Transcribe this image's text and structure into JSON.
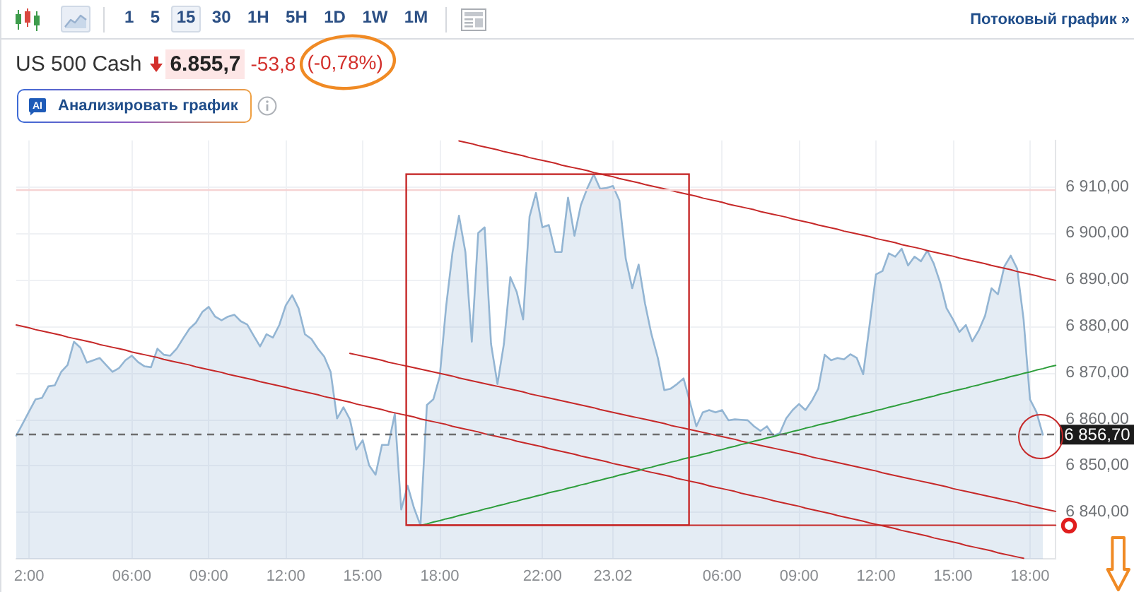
{
  "chart_data": {
    "type": "area",
    "title": "US 500 Cash",
    "annotations": [
      "6.855,7",
      "-53,8",
      "(-0,78%)",
      "AI",
      "Анализировать график",
      "Потоковый график »",
      "1 5 15 30 1H 5H 1D 1W 1M"
    ],
    "categories": [
      null,
      null,
      "2:00",
      null,
      null,
      null,
      null,
      null,
      null,
      null,
      null,
      null,
      null,
      null,
      null,
      null,
      null,
      null,
      "06:00",
      null,
      null,
      null,
      null,
      null,
      null,
      null,
      null,
      null,
      null,
      null,
      "09:00",
      null,
      null,
      null,
      null,
      null,
      null,
      null,
      null,
      null,
      null,
      null,
      "12:00",
      null,
      null,
      null,
      null,
      null,
      null,
      null,
      null,
      null,
      null,
      null,
      "15:00",
      null,
      null,
      null,
      null,
      null,
      null,
      null,
      null,
      null,
      null,
      null,
      "18:00",
      null,
      null,
      null,
      null,
      null,
      null,
      null,
      null,
      null,
      null,
      null,
      null,
      null,
      null,
      null,
      "22:00",
      null,
      null,
      null,
      null,
      null,
      null,
      null,
      null,
      null,
      null,
      "23.02",
      null,
      null,
      null,
      null,
      null,
      null,
      null,
      null,
      null,
      null,
      null,
      null,
      null,
      null,
      null,
      null,
      "06:00",
      null,
      null,
      null,
      null,
      null,
      null,
      null,
      null,
      null,
      null,
      null,
      "09:00",
      null,
      null,
      null,
      null,
      null,
      null,
      null,
      null,
      null,
      null,
      null,
      "12:00",
      null,
      null,
      null,
      null,
      null,
      null,
      null,
      null,
      null,
      null,
      null,
      "15:00",
      null,
      null,
      null,
      null,
      null,
      null,
      null,
      null,
      null,
      null,
      null,
      "18:00",
      null,
      null,
      null,
      null
    ],
    "series": [
      {
        "color": "#93b5d3",
        "values": [
          6856.5,
          6859.1,
          6861.7,
          6864.3,
          6864.6,
          6867.1,
          6867.3,
          6870.2,
          6871.7,
          6876.7,
          6875.4,
          6872.2,
          6872.7,
          6873.2,
          6871.7,
          6870.2,
          6871,
          6872.7,
          6873.7,
          6872.3,
          6871.4,
          6871.2,
          6875.2,
          6873.9,
          6873.7,
          6875.2,
          6877.4,
          6879.5,
          6880.8,
          6883.1,
          6884.2,
          6882.1,
          6881.3,
          6882.1,
          6882.5,
          6881.1,
          6880.4,
          6878,
          6875.7,
          6878.3,
          6877.6,
          6880.3,
          6884.5,
          6886.7,
          6883.9,
          6878.3,
          6877.3,
          6875.2,
          6873.5,
          6870.2,
          6860.2,
          6862.6,
          6860,
          6853.5,
          6855.5,
          6850.1,
          6848.1,
          6854.5,
          6854.5,
          6861.2,
          6840.6,
          6845.7,
          6840.9,
          6837.2,
          6863.1,
          6864.3,
          6869.2,
          6884.3,
          6896,
          6903.8,
          6896,
          6876.7,
          6900.1,
          6901.3,
          6876.2,
          6867.6,
          6876.2,
          6890.6,
          6887.4,
          6881.5,
          6903.6,
          6908.7,
          6901.3,
          6901.8,
          6896,
          6896,
          6907.7,
          6899.5,
          6906.1,
          6909.7,
          6912.7,
          6909.6,
          6909.8,
          6910.2,
          6907.1,
          6894.5,
          6888.2,
          6893.3,
          6884.9,
          6878.3,
          6873.2,
          6866.3,
          6866.6,
          6867.6,
          6868.8,
          6863.7,
          6858.5,
          6861.5,
          6862,
          6861.5,
          6862,
          6859.8,
          6860,
          6859.9,
          6859.8,
          6858.5,
          6857.5,
          6858.5,
          6856.5,
          6857,
          6860.2,
          6862,
          6863.3,
          6862,
          6864,
          6866.6,
          6873.9,
          6872.7,
          6873.2,
          6872.9,
          6874,
          6873.2,
          6869.7,
          6880.3,
          6891.2,
          6891.9,
          6895.7,
          6895,
          6896.7,
          6893.1,
          6895,
          6894,
          6896.3,
          6893.5,
          6889.4,
          6883.9,
          6881.5,
          6878.8,
          6880.3,
          6876.8,
          6879.1,
          6882.3,
          6888.2,
          6886.9,
          6892.9,
          6895.2,
          6892.4,
          6881.5,
          6864.3,
          6861.6,
          6856.7,
          null,
          null
        ]
      },
      {
        "type": "line",
        "color": "#c62828",
        "values": [
          null,
          null,
          null,
          null,
          null,
          null,
          null,
          null,
          null,
          null,
          null,
          null,
          null,
          null,
          null,
          null,
          null,
          null,
          null,
          null,
          null,
          null,
          null,
          null,
          null,
          null,
          null,
          null,
          null,
          null,
          null,
          null,
          null,
          null,
          null,
          null,
          null,
          null,
          null,
          null,
          null,
          null,
          null,
          null,
          null,
          null,
          null,
          null,
          null,
          null,
          null,
          null,
          null,
          null,
          null,
          null,
          null,
          null,
          null,
          null,
          null,
          null,
          null,
          null,
          null,
          null,
          null,
          null,
          null,
          6919.9,
          6919.6,
          6919.3,
          6918.9,
          6918.6,
          6918.3,
          6918.0,
          6917.6,
          6917.3,
          6917.0,
          6916.7,
          6916.3,
          6916.0,
          6915.7,
          6915.4,
          6915.1,
          6914.7,
          6914.4,
          6914.1,
          6913.8,
          6913.5,
          6913.1,
          6912.8,
          6912.5,
          6912.2,
          6911.8,
          6911.5,
          6911.2,
          6910.9,
          6910.5,
          6910.2,
          6909.9,
          6909.6,
          6909.3,
          6908.9,
          6908.6,
          6908.3,
          6908.0,
          6907.6,
          6907.3,
          6907.0,
          6906.7,
          6906.3,
          6906.0,
          6905.7,
          6905.4,
          6905.1,
          6904.7,
          6904.4,
          6904.1,
          6903.8,
          6903.5,
          6903.1,
          6902.8,
          6902.5,
          6902.2,
          6901.8,
          6901.5,
          6901.2,
          6900.9,
          6900.5,
          6900.2,
          6899.9,
          6899.6,
          6899.3,
          6898.9,
          6898.6,
          6898.3,
          6898.0,
          6897.6,
          6897.3,
          6897.0,
          6896.7,
          6896.3,
          6896.0,
          6895.7,
          6895.4,
          6895.1,
          6894.7,
          6894.4,
          6894.1,
          6893.8,
          6893.5,
          6893.1,
          6892.8,
          6892.5,
          6892.2,
          6891.8,
          6891.5,
          6891.2,
          6890.9,
          6890.5,
          6890.2,
          6889.9
        ]
      },
      {
        "type": "line",
        "color": "#c62828",
        "values": [
          null,
          null,
          null,
          null,
          null,
          null,
          null,
          null,
          null,
          null,
          null,
          null,
          null,
          null,
          null,
          null,
          null,
          null,
          null,
          null,
          null,
          null,
          null,
          null,
          null,
          null,
          null,
          null,
          null,
          null,
          null,
          null,
          null,
          null,
          null,
          null,
          null,
          null,
          null,
          null,
          null,
          null,
          null,
          null,
          null,
          null,
          null,
          null,
          null,
          null,
          null,
          null,
          6874.2,
          6873.9,
          6873.6,
          6873.3,
          6873.0,
          6872.7,
          6872.3,
          6872.0,
          6871.7,
          6871.4,
          6871.1,
          6870.8,
          6870.5,
          6870.2,
          6869.9,
          6869.6,
          6869.3,
          6868.9,
          6868.6,
          6868.3,
          6868.0,
          6867.7,
          6867.4,
          6867.1,
          6866.8,
          6866.5,
          6866.2,
          6865.9,
          6865.5,
          6865.2,
          6864.9,
          6864.6,
          6864.3,
          6864.0,
          6863.7,
          6863.4,
          6863.1,
          6862.8,
          6862.5,
          6862.1,
          6861.8,
          6861.5,
          6861.2,
          6860.9,
          6860.6,
          6860.3,
          6860.0,
          6859.7,
          6859.4,
          6859.1,
          6858.7,
          6858.4,
          6858.1,
          6857.8,
          6857.5,
          6857.2,
          6856.9,
          6856.6,
          6856.3,
          6856.0,
          6855.7,
          6855.3,
          6855.0,
          6854.7,
          6854.4,
          6854.1,
          6853.8,
          6853.5,
          6853.2,
          6852.9,
          6852.6,
          6852.3,
          6851.9,
          6851.6,
          6851.3,
          6851.0,
          6850.7,
          6850.4,
          6850.1,
          6849.8,
          6849.5,
          6849.2,
          6848.9,
          6848.5,
          6848.2,
          6847.9,
          6847.6,
          6847.3,
          6847.0,
          6846.7,
          6846.4,
          6846.1,
          6845.8,
          6845.5,
          6845.1,
          6844.8,
          6844.5,
          6844.2,
          6843.9,
          6843.6,
          6843.3,
          6843.0,
          6842.7,
          6842.4,
          6842.1,
          6841.7,
          6841.4,
          6841.1,
          6840.8,
          6840.5,
          6840.2
        ]
      },
      {
        "type": "line",
        "color": "#c62828",
        "values": [
          6880.3,
          6880.0,
          6879.7,
          6879.3,
          6879.0,
          6878.7,
          6878.4,
          6878.1,
          6877.7,
          6877.4,
          6877.1,
          6876.8,
          6876.5,
          6876.1,
          6875.8,
          6875.5,
          6875.2,
          6874.9,
          6874.5,
          6874.2,
          6873.9,
          6873.6,
          6873.3,
          6872.9,
          6872.6,
          6872.3,
          6872.0,
          6871.7,
          6871.3,
          6871.0,
          6870.7,
          6870.4,
          6870.1,
          6869.7,
          6869.4,
          6869.1,
          6868.8,
          6868.5,
          6868.1,
          6867.8,
          6867.5,
          6867.2,
          6866.9,
          6866.5,
          6866.2,
          6865.9,
          6865.6,
          6865.3,
          6864.9,
          6864.6,
          6864.3,
          6864.0,
          6863.7,
          6863.3,
          6863.0,
          6862.7,
          6862.4,
          6862.1,
          6861.7,
          6861.4,
          6861.1,
          6860.8,
          6860.5,
          6860.1,
          6859.8,
          6859.5,
          6859.2,
          6858.9,
          6858.5,
          6858.2,
          6857.9,
          6857.6,
          6857.3,
          6856.9,
          6856.6,
          6856.3,
          6856.0,
          6855.7,
          6855.3,
          6855.0,
          6854.7,
          6854.4,
          6854.1,
          6853.7,
          6853.4,
          6853.1,
          6852.8,
          6852.5,
          6852.1,
          6851.8,
          6851.5,
          6851.2,
          6850.9,
          6850.5,
          6850.2,
          6849.9,
          6849.6,
          6849.3,
          6848.9,
          6848.6,
          6848.3,
          6848.0,
          6847.7,
          6847.3,
          6847.0,
          6846.7,
          6846.4,
          6846.1,
          6845.7,
          6845.4,
          6845.1,
          6844.8,
          6844.5,
          6844.1,
          6843.8,
          6843.5,
          6843.2,
          6842.9,
          6842.5,
          6842.2,
          6841.9,
          6841.6,
          6841.3,
          6840.9,
          6840.6,
          6840.3,
          6840.0,
          6839.7,
          6839.3,
          6839.0,
          6838.7,
          6838.4,
          6838.1,
          6837.7,
          6837.4,
          6837.1,
          6836.8,
          6836.5,
          6836.1,
          6835.8,
          6835.5,
          6835.2,
          6834.9,
          6834.5,
          6834.2,
          6833.9,
          6833.6,
          6833.3,
          6832.9,
          6832.6,
          6832.3,
          6832.0,
          6831.7,
          6831.3,
          6831.0,
          6830.7,
          6830.4,
          6830.1,
          null,
          null,
          null,
          null,
          null
        ]
      },
      {
        "type": "line",
        "color": "#c62828",
        "values": [
          null,
          null,
          null,
          null,
          null,
          null,
          null,
          null,
          null,
          null,
          null,
          null,
          null,
          null,
          null,
          null,
          null,
          null,
          null,
          null,
          null,
          null,
          null,
          null,
          null,
          null,
          null,
          null,
          null,
          null,
          null,
          null,
          null,
          null,
          null,
          null,
          null,
          null,
          null,
          null,
          null,
          null,
          null,
          null,
          null,
          null,
          null,
          null,
          null,
          null,
          null,
          null,
          null,
          null,
          null,
          null,
          null,
          null,
          null,
          null,
          null,
          6837.2,
          6837.2,
          6837.2,
          6837.2,
          6837.2,
          6837.2,
          6837.2,
          6837.2,
          6837.2,
          6837.2,
          6837.2,
          6837.2,
          6837.2,
          6837.2,
          6837.2,
          6837.2,
          6837.2,
          6837.2,
          6837.2,
          6837.2,
          6837.2,
          6837.2,
          6837.2,
          6837.2,
          6837.2,
          6837.2,
          6837.2,
          6837.2,
          6837.2,
          6837.2,
          6837.2,
          6837.2,
          6837.2,
          6837.2,
          6837.2,
          6837.2,
          6837.2,
          6837.2,
          6837.2,
          6837.2,
          6837.2,
          6837.2,
          6837.2,
          6837.2,
          6837.2,
          6837.2,
          6837.2,
          6837.2,
          6837.2,
          6837.2,
          6837.2,
          6837.2,
          6837.2,
          6837.2,
          6837.2,
          6837.2,
          6837.2,
          6837.2,
          6837.2,
          6837.2,
          6837.2,
          6837.2,
          6837.2,
          6837.2,
          6837.2,
          6837.2,
          6837.2,
          6837.2,
          6837.2,
          6837.2,
          6837.2,
          6837.2,
          6837.2,
          6837.2,
          6837.2,
          6837.2,
          6837.2,
          6837.2,
          6837.2,
          6837.2,
          6837.2,
          6837.2,
          6837.2,
          6837.2,
          6837.2,
          6837.2,
          6837.2,
          6837.2,
          6837.2,
          6837.2,
          6837.2,
          6837.2,
          6837.2,
          6837.2,
          6837.2,
          6837.2,
          6837.2,
          6837.2,
          6837.2,
          6837.2,
          6837.2,
          6837.2
        ]
      },
      {
        "type": "line",
        "color": "#2e9e3c",
        "values": [
          null,
          null,
          null,
          null,
          null,
          null,
          null,
          null,
          null,
          null,
          null,
          null,
          null,
          null,
          null,
          null,
          null,
          null,
          null,
          null,
          null,
          null,
          null,
          null,
          null,
          null,
          null,
          null,
          null,
          null,
          null,
          null,
          null,
          null,
          null,
          null,
          null,
          null,
          null,
          null,
          null,
          null,
          null,
          null,
          null,
          null,
          null,
          null,
          null,
          null,
          null,
          null,
          null,
          null,
          null,
          null,
          null,
          null,
          null,
          null,
          null,
          null,
          null,
          6837.2,
          6837.5,
          6837.9,
          6838.2,
          6838.6,
          6838.9,
          6839.3,
          6839.6,
          6840.0,
          6840.3,
          6840.7,
          6841.0,
          6841.4,
          6841.7,
          6842.1,
          6842.4,
          6842.8,
          6843.1,
          6843.5,
          6843.8,
          6844.2,
          6844.5,
          6844.8,
          6845.2,
          6845.5,
          6845.9,
          6846.2,
          6846.6,
          6846.9,
          6847.3,
          6847.6,
          6848.0,
          6848.3,
          6848.7,
          6849.0,
          6849.4,
          6849.7,
          6850.1,
          6850.4,
          6850.8,
          6851.1,
          6851.5,
          6851.8,
          6852.1,
          6852.5,
          6852.8,
          6853.2,
          6853.5,
          6853.9,
          6854.2,
          6854.6,
          6854.9,
          6855.3,
          6855.6,
          6856.0,
          6856.3,
          6856.7,
          6857.0,
          6857.4,
          6857.7,
          6858.1,
          6858.4,
          6858.8,
          6859.1,
          6859.4,
          6859.8,
          6860.1,
          6860.5,
          6860.8,
          6861.2,
          6861.5,
          6861.9,
          6862.2,
          6862.6,
          6862.9,
          6863.3,
          6863.6,
          6864.0,
          6864.3,
          6864.7,
          6865.0,
          6865.4,
          6865.7,
          6866.1,
          6866.4,
          6866.7,
          6867.1,
          6867.4,
          6867.8,
          6868.1,
          6868.5,
          6868.8,
          6869.2,
          6869.5,
          6869.9,
          6870.2,
          6870.6,
          6870.9,
          6871.3,
          6871.6
        ]
      }
    ],
    "ylim": [
      6830,
      6920
    ],
    "yticks": [
      {
        "value": 6840,
        "label": "6 840,00"
      },
      {
        "value": 6850,
        "label": "6 850,00"
      },
      {
        "value": 6860,
        "label": "6 860,00"
      },
      {
        "value": 6870,
        "label": "6 870,00"
      },
      {
        "value": 6880,
        "label": "6 880,00"
      },
      {
        "value": 6890,
        "label": "6 890,00"
      },
      {
        "value": 6900,
        "label": "6 900,00"
      },
      {
        "value": 6910,
        "label": "6 910,00"
      }
    ],
    "ref_lines": [
      {
        "axis": "y",
        "value": 6909.5,
        "color": "#f6d3d3"
      },
      {
        "axis": "y",
        "value": 6856.7,
        "label": "6 856,70",
        "color": "#6e6e6e",
        "line_style": "dashed"
      }
    ],
    "grid": true,
    "marker": "none"
  }
}
